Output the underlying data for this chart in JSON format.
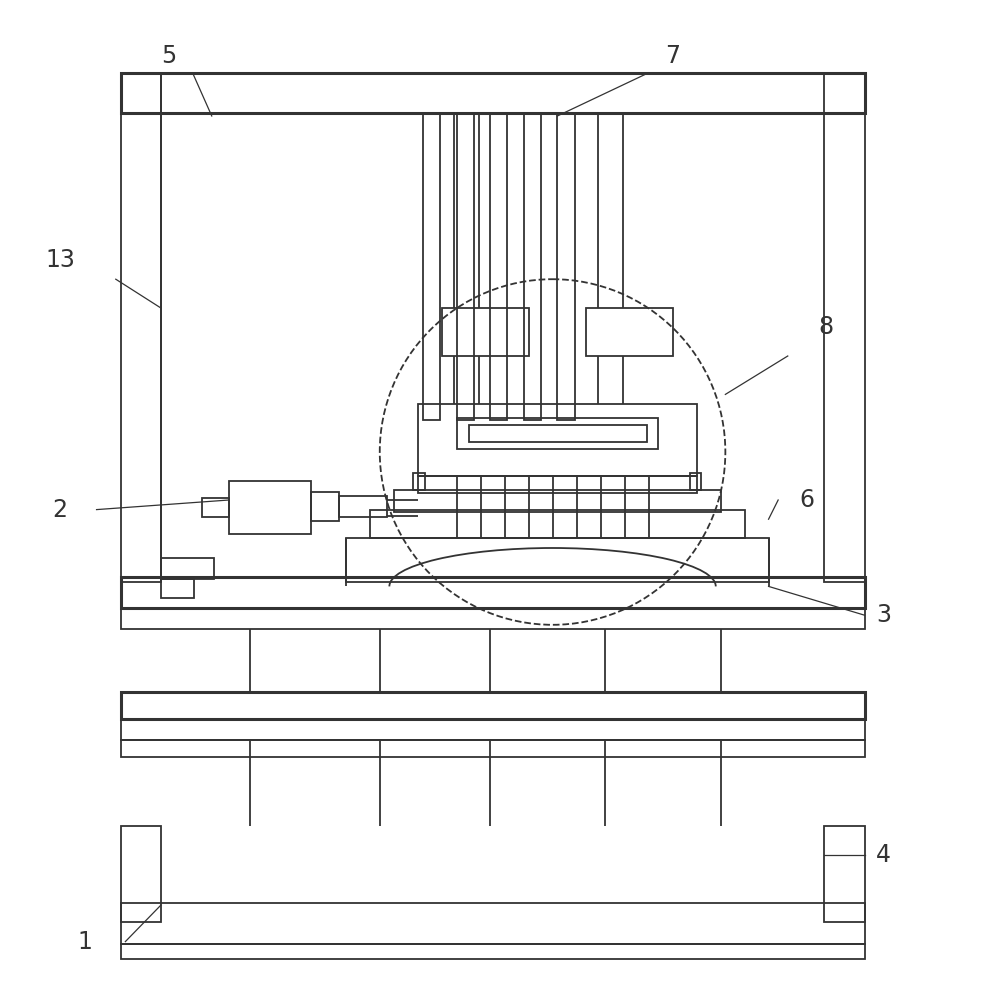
{
  "bg_color": "#ffffff",
  "line_color": "#333333",
  "lw": 1.3,
  "lw_thick": 2.2,
  "fig_width": 9.88,
  "fig_height": 10.0
}
